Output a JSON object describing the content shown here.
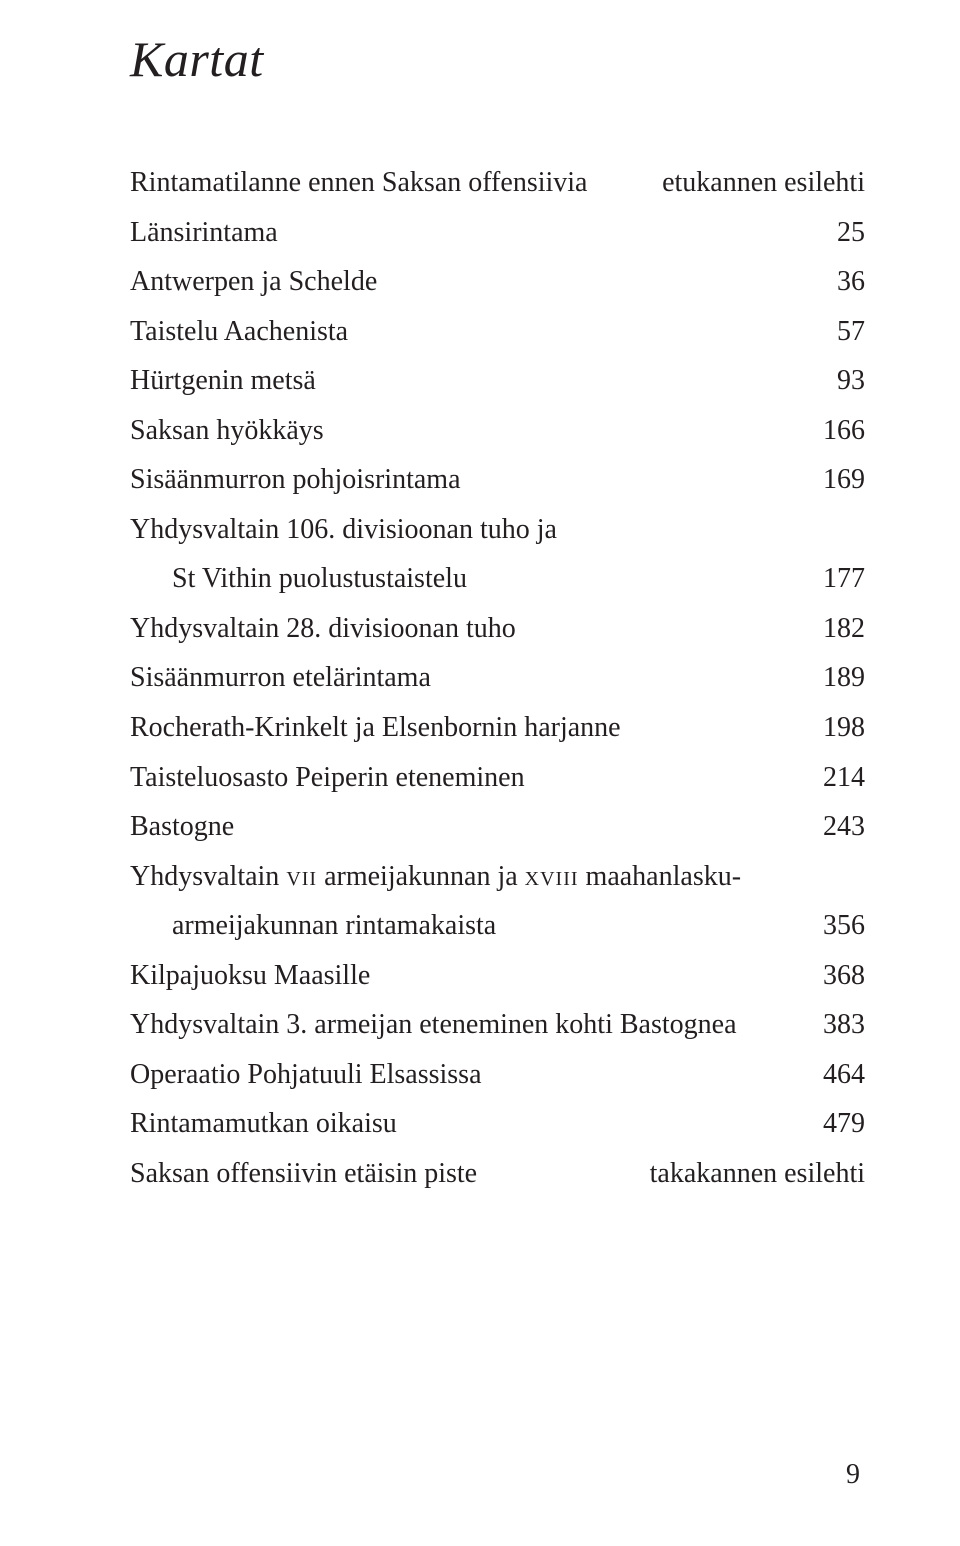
{
  "title": "Kartat",
  "entries": [
    {
      "label": "Rintamatilanne ennen Saksan offensiivia",
      "value": "etukannen esilehti",
      "indent": false
    },
    {
      "label": "Länsirintama",
      "value": "25",
      "indent": false
    },
    {
      "label": "Antwerpen ja Schelde",
      "value": "36",
      "indent": false
    },
    {
      "label": "Taistelu Aachenista",
      "value": "57",
      "indent": false
    },
    {
      "label": "Hürtgenin metsä",
      "value": "93",
      "indent": false
    },
    {
      "label": "Saksan hyökkäys",
      "value": "166",
      "indent": false
    },
    {
      "label": "Sisäänmurron pohjoisrintama",
      "value": "169",
      "indent": false
    },
    {
      "label": "Yhdysvaltain 106. divisioonan tuho ja",
      "value": "",
      "indent": false
    },
    {
      "label": "St Vithin puolustustaistelu",
      "value": "177",
      "indent": true
    },
    {
      "label": "Yhdysvaltain 28. divisioonan tuho",
      "value": "182",
      "indent": false
    },
    {
      "label": "Sisäänmurron etelärintama",
      "value": "189",
      "indent": false
    },
    {
      "label": "Rocherath-Krinkelt ja Elsenbornin harjanne",
      "value": "198",
      "indent": false
    },
    {
      "label": "Taisteluosasto Peiperin eteneminen",
      "value": "214",
      "indent": false
    },
    {
      "label": "Bastogne",
      "value": "243",
      "indent": false
    },
    {
      "label": "Yhdysvaltain <span class=\"sc\">vii</span> armeijakunnan ja <span class=\"sc\">xviii</span> maahanlasku-",
      "value": "",
      "indent": false,
      "html": true
    },
    {
      "label": "armeijakunnan rintamakaista",
      "value": "356",
      "indent": true
    },
    {
      "label": "Kilpajuoksu Maasille",
      "value": "368",
      "indent": false
    },
    {
      "label": "Yhdysvaltain 3. armeijan eteneminen kohti Bastognea",
      "value": "383",
      "indent": false
    },
    {
      "label": "Operaatio Pohjatuuli Elsassissa",
      "value": "464",
      "indent": false
    },
    {
      "label": "Rintamamutkan oikaisu",
      "value": "479",
      "indent": false
    },
    {
      "label": "Saksan offensiivin etäisin piste",
      "value": "takakannen esilehti",
      "indent": false
    }
  ],
  "pageNumber": "9"
}
